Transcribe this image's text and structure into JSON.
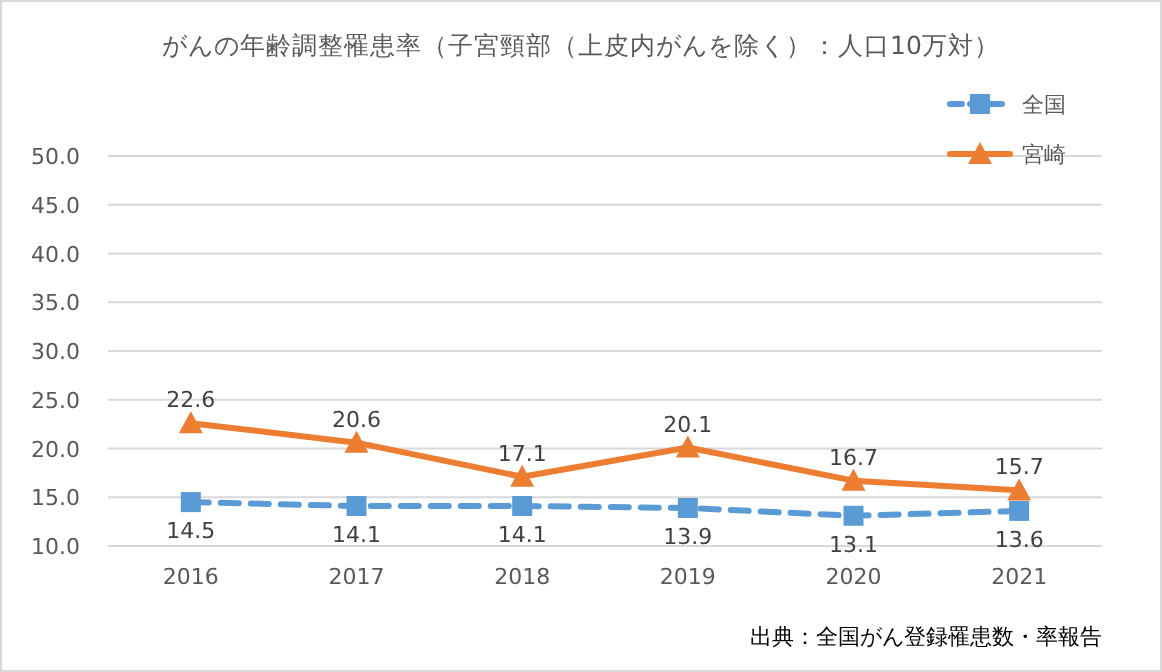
{
  "chart_data": {
    "type": "line",
    "title": "がんの年齢調整罹患率（子宮頸部（上皮内がんを除く）：人口10万対）",
    "categories": [
      "2016",
      "2017",
      "2018",
      "2019",
      "2020",
      "2021"
    ],
    "series": [
      {
        "name": "全国",
        "color": "#5b9bd5",
        "values": [
          14.5,
          14.1,
          14.1,
          13.9,
          13.1,
          13.6
        ],
        "marker": "square",
        "line_style": "dashed"
      },
      {
        "name": "宮崎",
        "color": "#ed7d31",
        "values": [
          22.6,
          20.6,
          17.1,
          20.1,
          16.7,
          15.7
        ],
        "marker": "triangle",
        "line_style": "solid"
      }
    ],
    "ylim": [
      10,
      50
    ],
    "yticks": [
      {
        "value": 10,
        "label": "10.0"
      },
      {
        "value": 15,
        "label": "15.0"
      },
      {
        "value": 20,
        "label": "20.0"
      },
      {
        "value": 25,
        "label": "25.0"
      },
      {
        "value": 30,
        "label": "30.0"
      },
      {
        "value": 35,
        "label": "35.0"
      },
      {
        "value": 40,
        "label": "40.0"
      },
      {
        "value": 45,
        "label": "45.0"
      },
      {
        "value": 50,
        "label": "50.0"
      }
    ],
    "grid": "y",
    "legend": "top right",
    "data_labels": true,
    "annotations": [
      "出典：全国がん登録罹患数・率報告"
    ]
  }
}
